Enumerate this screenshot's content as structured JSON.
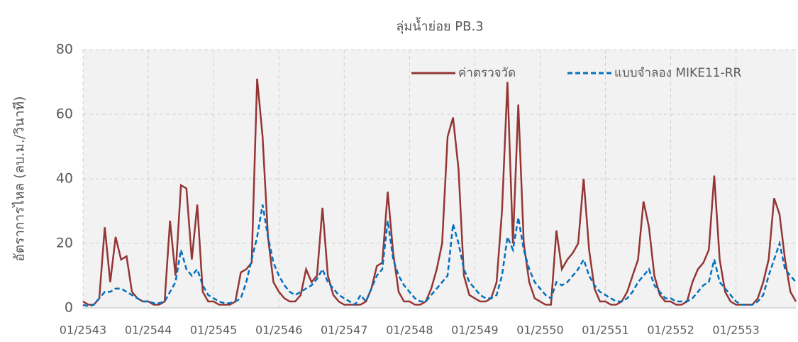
{
  "chart_data": {
    "type": "line",
    "title": "ลุ่มน้ำย่อย PB.3",
    "y_label": "อัตราการไหล (ลบ.ม./วินาที)",
    "categories": [
      "01/2543",
      null,
      null,
      null,
      null,
      null,
      null,
      null,
      null,
      null,
      null,
      null,
      "01/2544",
      null,
      null,
      null,
      null,
      null,
      null,
      null,
      null,
      null,
      null,
      null,
      "01/2545",
      null,
      null,
      null,
      null,
      null,
      null,
      null,
      null,
      null,
      null,
      null,
      "01/2546",
      null,
      null,
      null,
      null,
      null,
      null,
      null,
      null,
      null,
      null,
      null,
      "01/2547",
      null,
      null,
      null,
      null,
      null,
      null,
      null,
      null,
      null,
      null,
      null,
      "01/2548",
      null,
      null,
      null,
      null,
      null,
      null,
      null,
      null,
      null,
      null,
      null,
      "01/2549",
      null,
      null,
      null,
      null,
      null,
      null,
      null,
      null,
      null,
      null,
      null,
      "01/2550",
      null,
      null,
      null,
      null,
      null,
      null,
      null,
      null,
      null,
      null,
      null,
      "01/2551",
      null,
      null,
      null,
      null,
      null,
      null,
      null,
      null,
      null,
      null,
      null,
      "01/2552",
      null,
      null,
      null,
      null,
      null,
      null,
      null,
      null,
      null,
      null,
      null,
      "01/2553",
      null,
      null,
      null,
      null,
      null,
      null,
      null,
      null,
      null,
      null,
      null
    ],
    "series": [
      {
        "name": "ค่าตรวจวัด",
        "color": "#943634",
        "dashed": false,
        "values": [
          2,
          1,
          1,
          3,
          25,
          8,
          22,
          15,
          16,
          5,
          3,
          2,
          2,
          1,
          1,
          2,
          27,
          10,
          38,
          37,
          15,
          32,
          5,
          2,
          2,
          1,
          1,
          1,
          2,
          11,
          12,
          14,
          71,
          53,
          22,
          8,
          5,
          3,
          2,
          2,
          4,
          12,
          8,
          10,
          31,
          10,
          4,
          2,
          1,
          1,
          1,
          1,
          2,
          6,
          13,
          14,
          36,
          17,
          5,
          2,
          2,
          1,
          1,
          2,
          6,
          12,
          20,
          53,
          59,
          43,
          10,
          4,
          3,
          2,
          2,
          3,
          8,
          30,
          70,
          20,
          63,
          20,
          8,
          3,
          2,
          1,
          1,
          24,
          12,
          15,
          17,
          20,
          40,
          18,
          6,
          2,
          2,
          1,
          1,
          2,
          5,
          10,
          15,
          33,
          25,
          10,
          4,
          2,
          2,
          1,
          1,
          2,
          8,
          12,
          14,
          18,
          41,
          15,
          5,
          2,
          1,
          1,
          1,
          1,
          3,
          8,
          15,
          34,
          29,
          15,
          5,
          2
        ]
      },
      {
        "name": "แบบจำลอง MIKE11-RR",
        "color": "#0070c0",
        "dashed": true,
        "values": [
          1,
          0.5,
          1,
          3,
          5,
          5,
          6,
          6,
          5,
          4,
          3,
          2,
          2,
          1.5,
          1.5,
          2,
          5,
          8,
          18,
          12,
          10,
          12,
          7,
          4,
          3,
          2,
          1.5,
          1.5,
          2,
          3,
          8,
          15,
          22,
          32,
          22,
          14,
          10,
          7,
          5,
          4,
          5,
          6,
          7,
          9,
          12,
          8,
          6,
          4,
          3,
          2,
          1,
          4,
          2,
          6,
          10,
          12,
          27,
          15,
          10,
          7,
          5,
          3,
          2,
          2,
          4,
          6,
          8,
          10,
          26,
          20,
          12,
          8,
          6,
          4,
          3,
          3,
          4,
          10,
          22,
          18,
          28,
          18,
          12,
          8,
          6,
          4,
          3,
          8,
          7,
          8,
          10,
          12,
          15,
          10,
          7,
          5,
          4,
          3,
          2,
          2,
          3,
          5,
          8,
          10,
          12,
          7,
          5,
          3,
          3,
          2,
          2,
          2,
          3,
          5,
          7,
          8,
          15,
          8,
          6,
          4,
          2,
          1,
          1,
          1,
          2,
          4,
          10,
          15,
          20,
          12,
          10,
          8
        ]
      }
    ],
    "ylim": [
      0,
      80
    ],
    "yticks": [
      0,
      20,
      40,
      60,
      80
    ],
    "grid": true,
    "legend": "upper right"
  }
}
